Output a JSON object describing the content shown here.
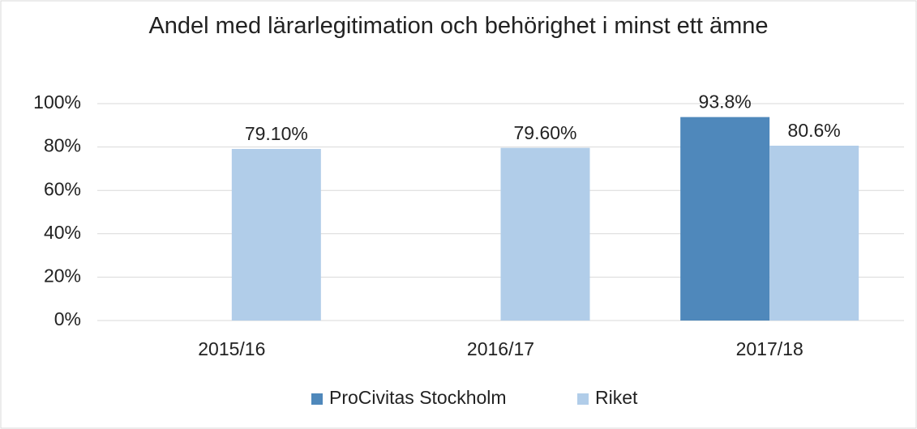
{
  "chart_data": {
    "type": "bar",
    "title": "Andel med lärarlegitimation och behörighet i minst ett ämne",
    "categories": [
      "2015/16",
      "2016/17",
      "2017/18"
    ],
    "series": [
      {
        "name": "ProCivitas Stockholm",
        "color": "#4f88bb",
        "values": [
          null,
          null,
          93.8
        ],
        "value_labels": [
          null,
          null,
          "93.8%"
        ]
      },
      {
        "name": "Riket",
        "color": "#b1cde9",
        "values": [
          79.1,
          79.6,
          80.6
        ],
        "value_labels": [
          "79.10%",
          "79.60%",
          "80.6%"
        ]
      }
    ],
    "ylim": [
      0,
      100
    ],
    "yticks": [
      {
        "value": 0,
        "label": "0%"
      },
      {
        "value": 20,
        "label": "20%"
      },
      {
        "value": 40,
        "label": "40%"
      },
      {
        "value": 60,
        "label": "60%"
      },
      {
        "value": 80,
        "label": "80%"
      },
      {
        "value": 100,
        "label": "100%"
      }
    ],
    "grid": true,
    "legend": "bottom"
  }
}
